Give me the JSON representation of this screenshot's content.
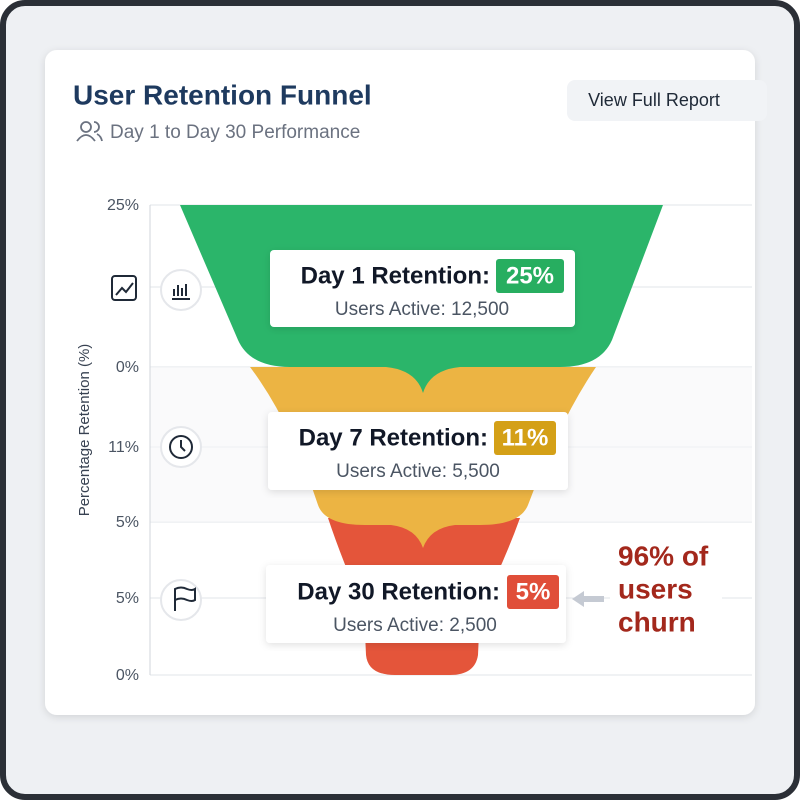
{
  "header": {
    "title": "User Retention Funnel",
    "subtitle": "Day 1 to Day 30 Performance",
    "button": "View Full Report"
  },
  "chart": {
    "y_axis_title": "Percentage Retention (%)",
    "y_axis_labels": [
      "25%",
      "0%",
      "11%",
      "5%",
      "5%",
      "0%"
    ],
    "stages": [
      {
        "label": "Day 1 Retention:",
        "badge": "25%",
        "users": "Users Active: 12,500"
      },
      {
        "label": "Day 7 Retention:",
        "badge": "11%",
        "users": "Users Active: 5,500"
      },
      {
        "label": "Day 30 Retention:",
        "badge": "5%",
        "users": "Users Active: 2,500"
      }
    ],
    "annotation": [
      "96% of",
      "users",
      "churn"
    ]
  }
}
